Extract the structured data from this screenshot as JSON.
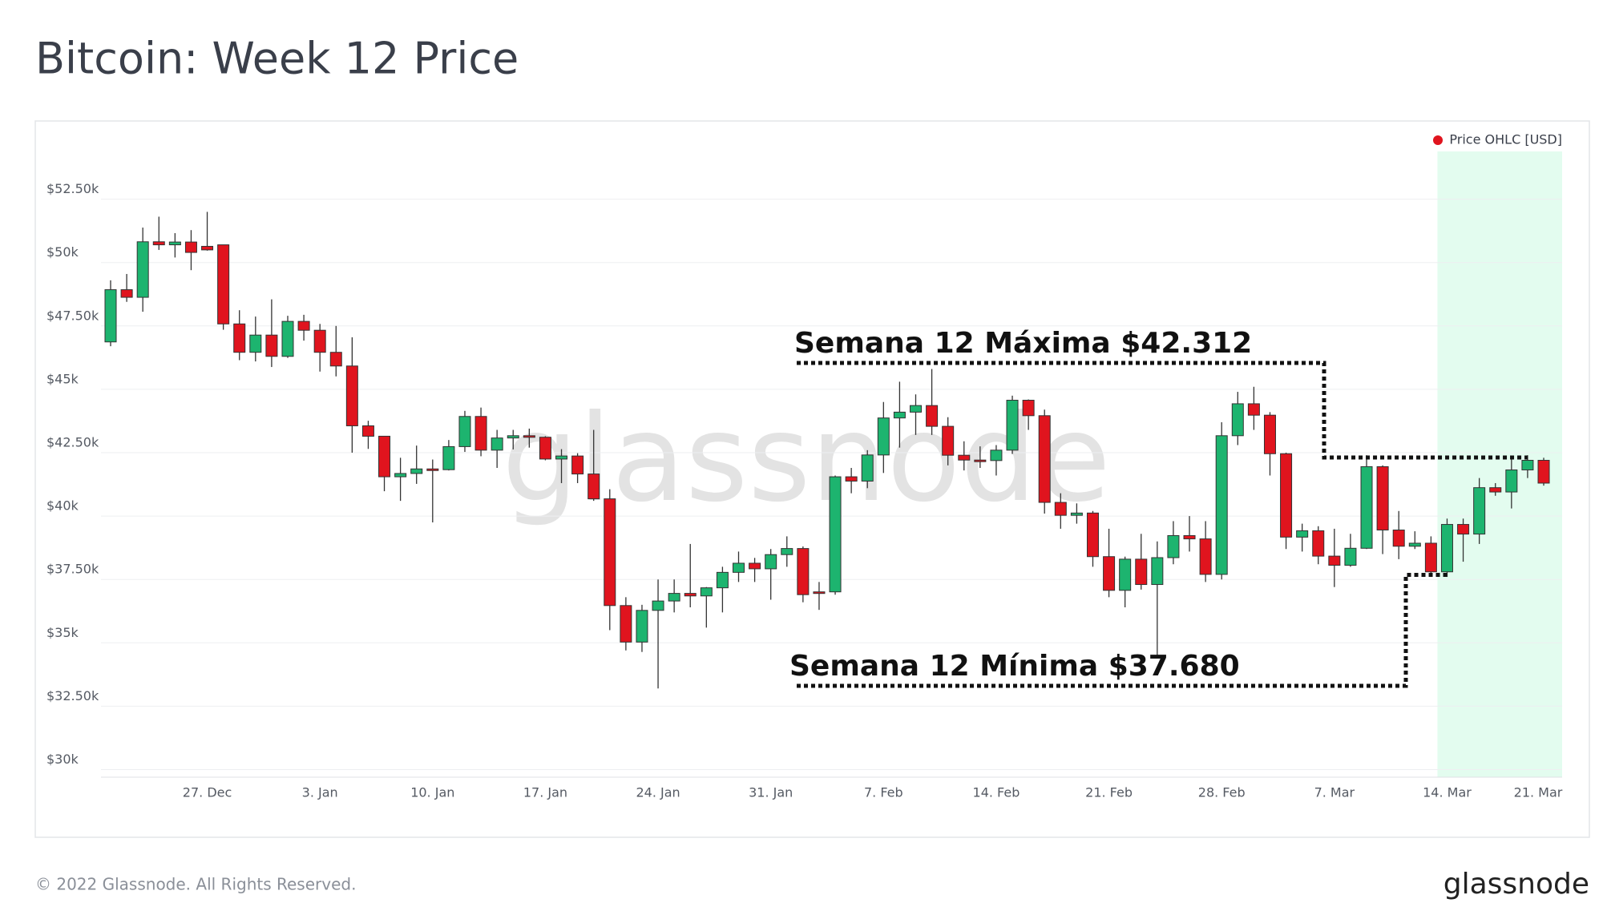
{
  "chart_data": {
    "type": "candlestick",
    "title": "Bitcoin: Week 12 Price",
    "x": [
      "21. Dec",
      "22. Dec",
      "23. Dec",
      "24. Dec",
      "25. Dec",
      "26. Dec",
      "27. Dec",
      "28. Dec",
      "29. Dec",
      "30. Dec",
      "31. Dec",
      "1. Jan",
      "2. Jan",
      "3. Jan",
      "4. Jan",
      "5. Jan",
      "6. Jan",
      "7. Jan",
      "8. Jan",
      "9. Jan",
      "10. Jan",
      "11. Jan",
      "12. Jan",
      "13. Jan",
      "14. Jan",
      "15. Jan",
      "16. Jan",
      "17. Jan",
      "18. Jan",
      "19. Jan",
      "20. Jan",
      "21. Jan",
      "22. Jan",
      "23. Jan",
      "24. Jan",
      "25. Jan",
      "26. Jan",
      "27. Jan",
      "28. Jan",
      "29. Jan",
      "30. Jan",
      "31. Jan",
      "1. Feb",
      "2. Feb",
      "3. Feb",
      "4. Feb",
      "5. Feb",
      "6. Feb",
      "7. Feb",
      "8. Feb",
      "9. Feb",
      "10. Feb",
      "11. Feb",
      "12. Feb",
      "13. Feb",
      "14. Feb",
      "15. Feb",
      "16. Feb",
      "17. Feb",
      "18. Feb",
      "19. Feb",
      "20. Feb",
      "21. Feb",
      "22. Feb",
      "23. Feb",
      "24. Feb",
      "25. Feb",
      "26. Feb",
      "27. Feb",
      "28. Feb",
      "1. Mar",
      "2. Mar",
      "3. Mar",
      "4. Mar",
      "5. Mar",
      "6. Mar",
      "7. Mar",
      "8. Mar",
      "9. Mar",
      "10. Mar",
      "11. Mar",
      "12. Mar",
      "13. Mar",
      "14. Mar",
      "15. Mar",
      "16. Mar",
      "17. Mar",
      "18. Mar",
      "19. Mar",
      "20. Mar"
    ],
    "series": [
      {
        "name": "Price OHLC [USD]",
        "color": "#e0141e",
        "up_color": "#1db46f",
        "down_color": "#e0141e",
        "ohlc": [
          [
            46870,
            49300,
            46700,
            48930
          ],
          [
            48930,
            49550,
            48450,
            48630
          ],
          [
            48630,
            51380,
            48060,
            50820
          ],
          [
            50820,
            51810,
            50500,
            50700
          ],
          [
            50700,
            51160,
            50200,
            50810
          ],
          [
            50810,
            51280,
            49700,
            50400
          ],
          [
            50640,
            52000,
            50470,
            50500
          ],
          [
            50700,
            50700,
            47350,
            47580
          ],
          [
            47580,
            48120,
            46150,
            46460
          ],
          [
            46460,
            47870,
            46100,
            47140
          ],
          [
            47140,
            48550,
            45880,
            46300
          ],
          [
            46300,
            47900,
            46240,
            47680
          ],
          [
            47680,
            47940,
            46920,
            47330
          ],
          [
            47330,
            47580,
            45700,
            46460
          ],
          [
            46460,
            47500,
            45510,
            45920
          ],
          [
            45920,
            47050,
            42500,
            43560
          ],
          [
            43560,
            43760,
            42650,
            43150
          ],
          [
            43150,
            43150,
            40980,
            41550
          ],
          [
            41550,
            42300,
            40600,
            41680
          ],
          [
            41680,
            42780,
            41270,
            41860
          ],
          [
            41860,
            42230,
            39750,
            41830
          ],
          [
            41830,
            43000,
            41800,
            42740
          ],
          [
            42740,
            44150,
            42530,
            43930
          ],
          [
            43930,
            44280,
            42360,
            42600
          ],
          [
            42600,
            43400,
            41900,
            43080
          ],
          [
            43080,
            43400,
            42630,
            43170
          ],
          [
            43170,
            43450,
            42700,
            43110
          ],
          [
            43110,
            43150,
            42200,
            42250
          ],
          [
            42250,
            42640,
            41300,
            42370
          ],
          [
            42370,
            42480,
            41300,
            41660
          ],
          [
            41660,
            43400,
            40600,
            40680
          ],
          [
            40680,
            41060,
            35500,
            36470
          ],
          [
            36470,
            36800,
            34700,
            35030
          ],
          [
            35030,
            36500,
            34640,
            36280
          ],
          [
            36280,
            37500,
            33200,
            36650
          ],
          [
            36650,
            37500,
            36200,
            36950
          ],
          [
            36950,
            38900,
            36400,
            36850
          ],
          [
            36850,
            37200,
            35600,
            37170
          ],
          [
            37170,
            38000,
            36200,
            37780
          ],
          [
            37780,
            38600,
            37400,
            38140
          ],
          [
            38140,
            38350,
            37400,
            37920
          ],
          [
            37920,
            38700,
            36700,
            38480
          ],
          [
            38480,
            39200,
            38000,
            38720
          ],
          [
            38720,
            38800,
            36600,
            36900
          ],
          [
            37010,
            37400,
            36300,
            36950
          ],
          [
            37010,
            41600,
            36900,
            41550
          ],
          [
            41550,
            41900,
            40900,
            41380
          ],
          [
            41380,
            42600,
            41100,
            42410
          ],
          [
            42410,
            44500,
            41700,
            43870
          ],
          [
            43870,
            45300,
            42700,
            44100
          ],
          [
            44100,
            44800,
            43200,
            44360
          ],
          [
            44360,
            45800,
            43200,
            43540
          ],
          [
            43540,
            43900,
            42000,
            42400
          ],
          [
            42400,
            42950,
            41800,
            42210
          ],
          [
            42210,
            42750,
            41900,
            42190
          ],
          [
            42190,
            42800,
            41600,
            42600
          ],
          [
            42600,
            44750,
            42450,
            44570
          ],
          [
            44570,
            44600,
            43400,
            43960
          ],
          [
            43960,
            44200,
            40100,
            40540
          ],
          [
            40540,
            40900,
            39500,
            40030
          ],
          [
            40030,
            40500,
            39700,
            40120
          ],
          [
            40120,
            40200,
            38000,
            38400
          ],
          [
            38400,
            39500,
            36800,
            37070
          ],
          [
            37070,
            38400,
            36400,
            38300
          ],
          [
            38300,
            39300,
            37100,
            37300
          ],
          [
            37300,
            39000,
            34500,
            38360
          ],
          [
            38360,
            39800,
            38100,
            39230
          ],
          [
            39230,
            40000,
            38600,
            39100
          ],
          [
            39100,
            39800,
            37400,
            37700
          ],
          [
            37700,
            43700,
            37500,
            43170
          ],
          [
            43170,
            44900,
            42800,
            44430
          ],
          [
            44430,
            45100,
            43400,
            43980
          ],
          [
            43980,
            44100,
            41600,
            42460
          ],
          [
            42460,
            42500,
            38700,
            39170
          ],
          [
            39170,
            39700,
            38600,
            39420
          ],
          [
            39420,
            39600,
            38100,
            38420
          ],
          [
            38420,
            39500,
            37200,
            38060
          ],
          [
            38060,
            39300,
            38000,
            38730
          ],
          [
            38730,
            42400,
            38700,
            41950
          ],
          [
            41950,
            42000,
            38500,
            39450
          ],
          [
            39450,
            40200,
            38300,
            38810
          ],
          [
            38810,
            39400,
            38700,
            38930
          ],
          [
            38930,
            39200,
            37600,
            37800
          ],
          [
            37800,
            39900,
            37600,
            39670
          ],
          [
            39670,
            39900,
            38200,
            39290
          ],
          [
            39290,
            41500,
            38900,
            41120
          ],
          [
            41120,
            41300,
            40800,
            40950
          ],
          [
            40950,
            42300,
            40300,
            41820
          ],
          [
            41820,
            42400,
            41500,
            42200
          ],
          [
            42200,
            42300,
            41200,
            41300
          ]
        ]
      }
    ],
    "ylim": [
      29700,
      54700
    ],
    "yticks": [
      {
        "value": 30000,
        "label": "$30k"
      },
      {
        "value": 32500,
        "label": "$32.50k"
      },
      {
        "value": 35000,
        "label": "$35k"
      },
      {
        "value": 37500,
        "label": "$37.50k"
      },
      {
        "value": 40000,
        "label": "$40k"
      },
      {
        "value": 42500,
        "label": "$42.50k"
      },
      {
        "value": 45000,
        "label": "$45k"
      },
      {
        "value": 47500,
        "label": "$47.50k"
      },
      {
        "value": 50000,
        "label": "$50k"
      },
      {
        "value": 52500,
        "label": "$52.50k"
      }
    ],
    "xticks": [
      "27. Dec",
      "3. Jan",
      "10. Jan",
      "17. Jan",
      "24. Jan",
      "31. Jan",
      "7. Feb",
      "14. Feb",
      "21. Feb",
      "28. Feb",
      "7. Mar",
      "14. Mar",
      "21. Mar"
    ],
    "grid": true,
    "legend": "top-right",
    "highlight": {
      "from": "14. Mar",
      "color": "#e3fcef"
    },
    "annotations": [
      {
        "text": "Semana 12 Máxima $42.312",
        "value": 42312
      },
      {
        "text": "Semana 12 Mínima $37.680",
        "value": 37680
      }
    ],
    "watermark": "glassnode",
    "footer": "© 2022 Glassnode. All Rights Reserved.",
    "logo": "glassnode"
  }
}
